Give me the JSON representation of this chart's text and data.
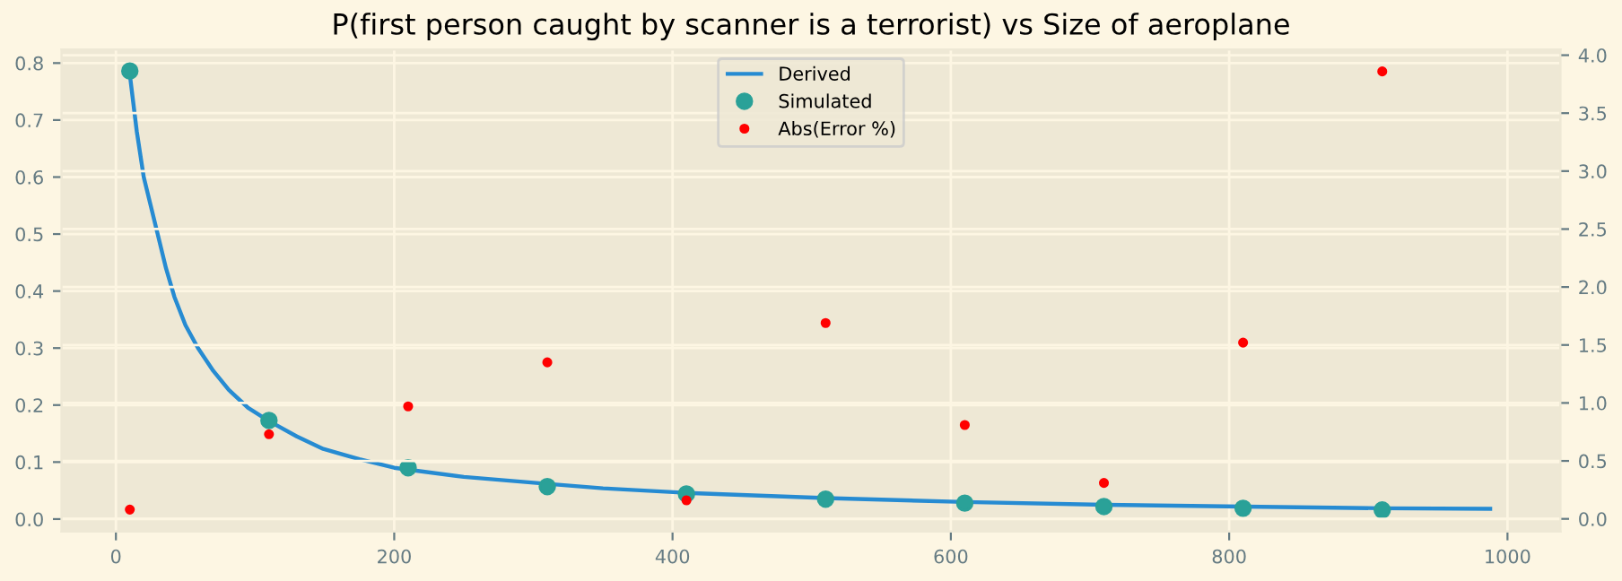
{
  "chart_data": {
    "type": "line",
    "title": "P(first person caught by scanner is a terrorist) vs Size of aeroplane",
    "series": [
      {
        "name": "Derived",
        "color": "#268bd2",
        "marker": "none",
        "x": [
          10,
          15,
          20,
          25,
          30,
          36,
          42,
          50,
          59,
          70,
          81,
          95,
          110,
          130,
          149,
          175,
          200,
          250,
          304,
          350,
          410,
          510,
          610,
          710,
          810,
          910,
          989
        ],
        "values": [
          0.78,
          0.68,
          0.6,
          0.55,
          0.5,
          0.44,
          0.39,
          0.34,
          0.3,
          0.26,
          0.227,
          0.195,
          0.172,
          0.145,
          0.123,
          0.105,
          0.09,
          0.074,
          0.063,
          0.054,
          0.046,
          0.037,
          0.03,
          0.025,
          0.022,
          0.019,
          0.018
        ]
      },
      {
        "name": "Simulated",
        "type": "scatter",
        "marker": "circle",
        "color": "#2aa198",
        "x": [
          10,
          110,
          210,
          310,
          410,
          510,
          610,
          710,
          810,
          910
        ],
        "values": [
          0.786,
          0.173,
          0.09,
          0.057,
          0.044,
          0.035,
          0.028,
          0.022,
          0.019,
          0.016
        ]
      },
      {
        "name": "Abs(Error %)",
        "type": "scatter",
        "marker": "circle",
        "axis": "y2",
        "color": "#ff0000",
        "x": [
          10,
          110,
          210,
          310,
          410,
          510,
          610,
          710,
          810,
          910
        ],
        "values": [
          0.08,
          0.73,
          0.97,
          1.35,
          0.16,
          1.69,
          0.81,
          0.31,
          1.52,
          3.86
        ]
      }
    ],
    "xlim": [
      -39,
      1038
    ],
    "xticks": [
      0,
      200,
      400,
      600,
      800,
      1000
    ],
    "ylim": [
      -0.022,
      0.824
    ],
    "yticks": [
      {
        "value": 0,
        "label": "0.0"
      },
      0.1,
      0.2,
      0.3,
      0.4,
      0.5,
      0.6,
      0.7,
      0.8
    ],
    "y2lim": [
      -0.11,
      4.05
    ],
    "y2ticks": [
      {
        "value": 0,
        "label": "0.0"
      },
      0.5,
      {
        "value": 1,
        "label": "1.0"
      },
      1.5,
      {
        "value": 2,
        "label": "2.0"
      },
      2.5,
      {
        "value": 3,
        "label": "3.0"
      },
      3.5,
      {
        "value": 4,
        "label": "4.0"
      }
    ],
    "grid": true,
    "legend": "top"
  }
}
